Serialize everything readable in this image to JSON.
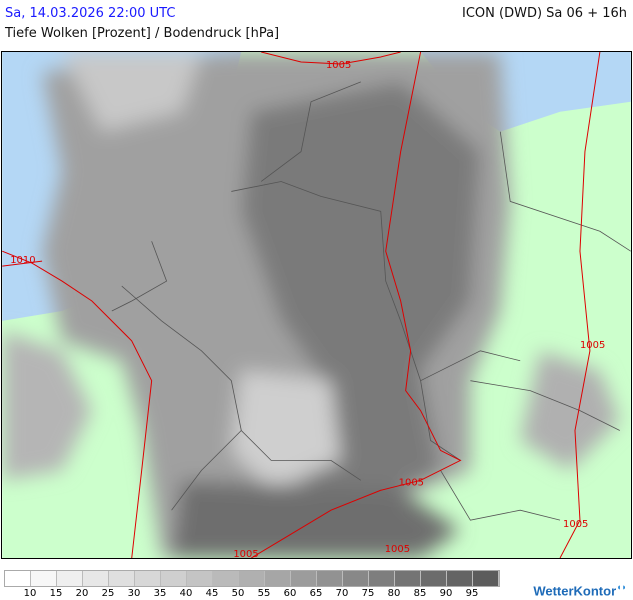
{
  "header": {
    "datetime": "Sa, 14.03.2026 22:00 UTC",
    "model_run": "ICON (DWD) Sa 06 + 16h",
    "parameter": "Tiefe Wolken [Prozent] / Bodendruck [hPa]"
  },
  "map": {
    "colors": {
      "land": "#ccffcc",
      "sea": "#b4d7f5",
      "isobar": "#dd0000",
      "border": "#555555"
    },
    "isobar_labels": [
      "1005",
      "1010",
      "1005",
      "1005",
      "1005",
      "1005",
      "1005"
    ]
  },
  "legend": {
    "unit": "Prozent",
    "labels": [
      "10",
      "15",
      "20",
      "25",
      "30",
      "35",
      "40",
      "45",
      "50",
      "55",
      "60",
      "65",
      "70",
      "75",
      "80",
      "85",
      "90",
      "95"
    ],
    "colors": [
      "#ffffff",
      "#f7f7f7",
      "#efefef",
      "#e7e7e7",
      "#dfdfdf",
      "#d7d7d7",
      "#cfcfcf",
      "#c4c4c4",
      "#bababa",
      "#b0b0b0",
      "#a6a6a6",
      "#9c9c9c",
      "#929292",
      "#888888",
      "#7e7e7e",
      "#747474",
      "#6c6c6c",
      "#646464",
      "#5c5c5c"
    ]
  },
  "branding": {
    "logo": "WetterKontor"
  }
}
